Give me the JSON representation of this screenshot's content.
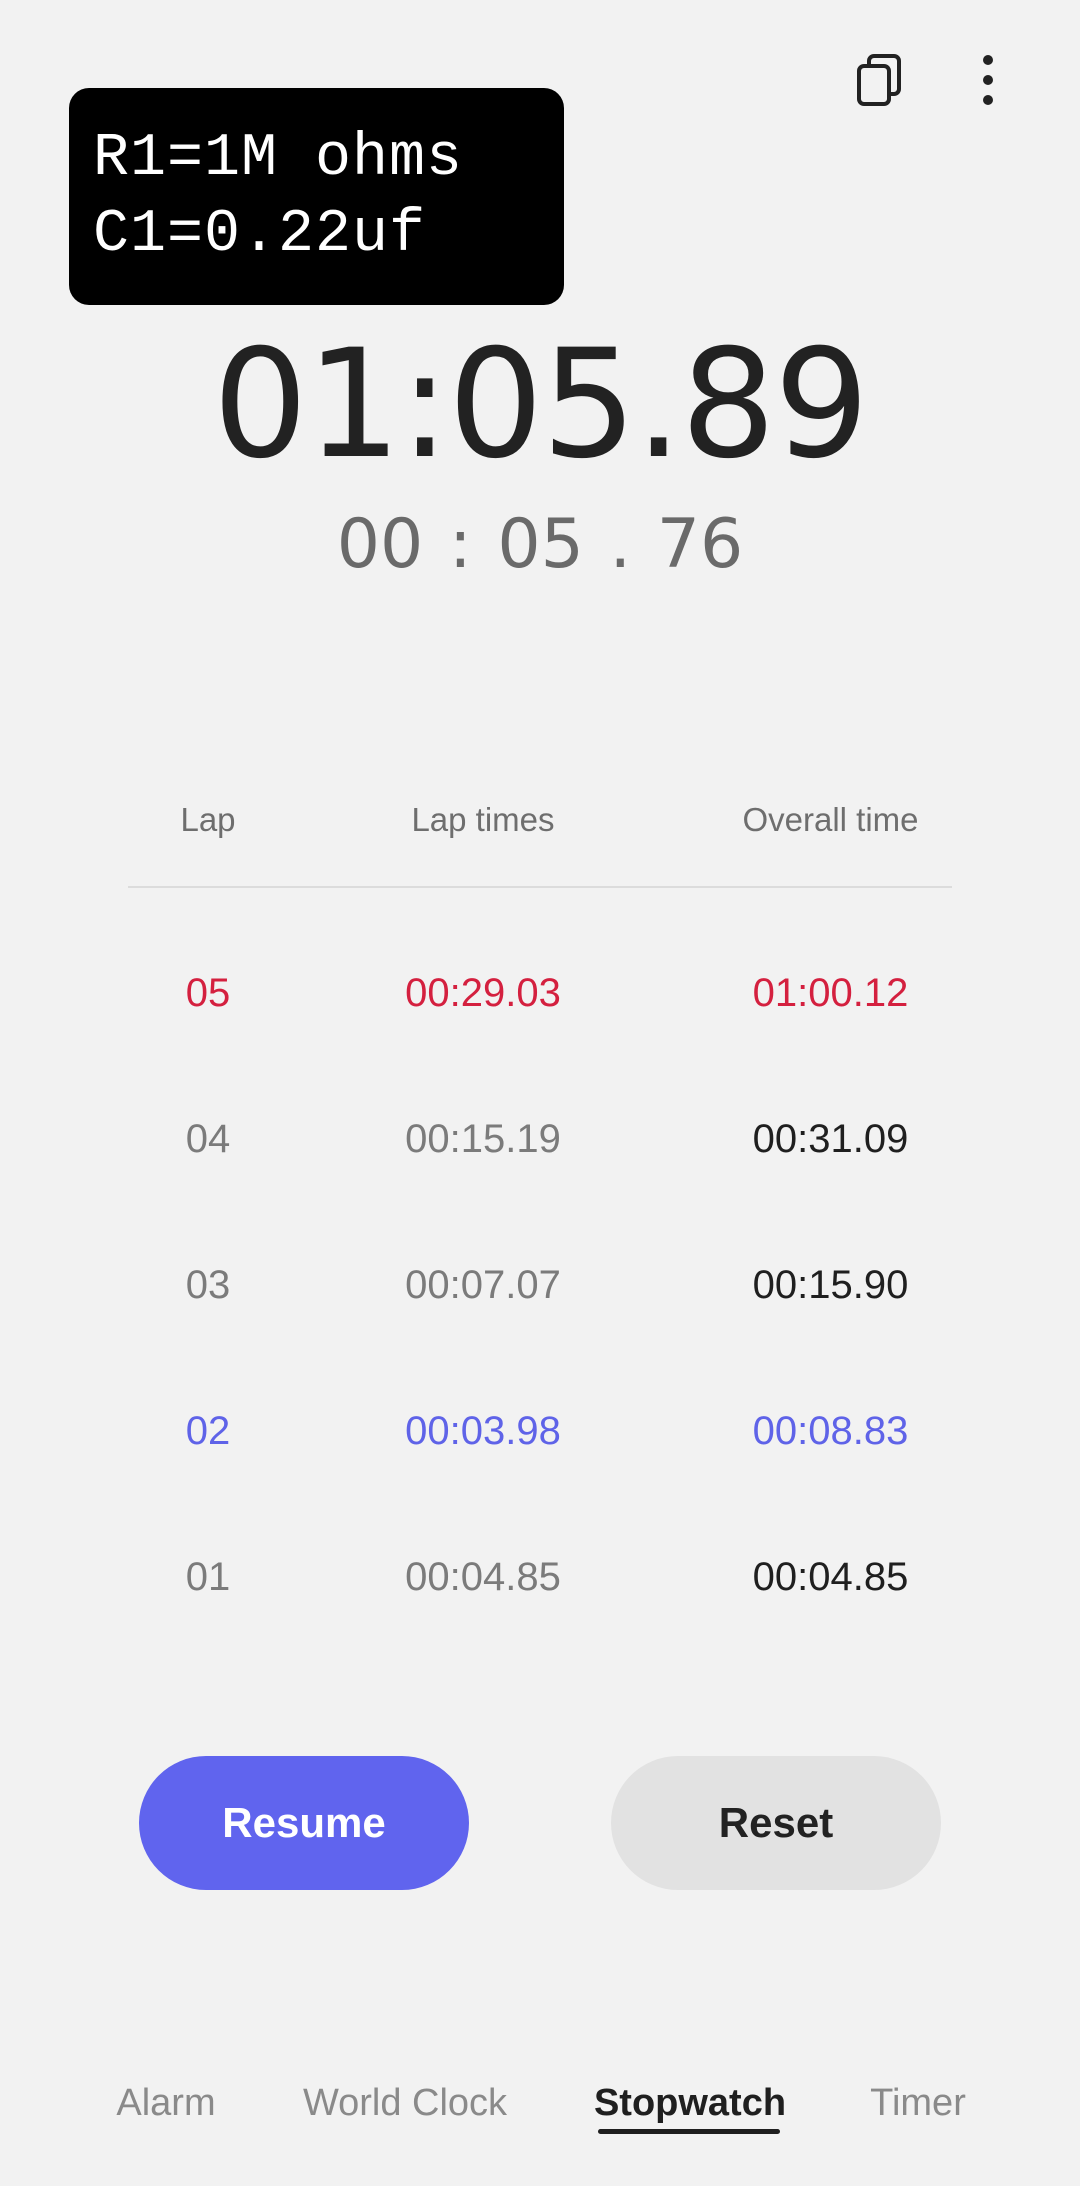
{
  "overlay": {
    "line1": "R1=1M ohms",
    "line2": "C1=0.22uf"
  },
  "stopwatch": {
    "main_time": "01:05.89",
    "current_lap_time": "00 : 05 . 76"
  },
  "lap_table": {
    "headers": {
      "lap": "Lap",
      "lap_times": "Lap times",
      "overall_time": "Overall time"
    },
    "rows": [
      {
        "lap": "05",
        "lap_time": "00:29.03",
        "overall": "01:00.12",
        "highlight": "slowest"
      },
      {
        "lap": "04",
        "lap_time": "00:15.19",
        "overall": "00:31.09",
        "highlight": "none"
      },
      {
        "lap": "03",
        "lap_time": "00:07.07",
        "overall": "00:15.90",
        "highlight": "none"
      },
      {
        "lap": "02",
        "lap_time": "00:03.98",
        "overall": "00:08.83",
        "highlight": "fastest"
      },
      {
        "lap": "01",
        "lap_time": "00:04.85",
        "overall": "00:04.85",
        "highlight": "none"
      }
    ]
  },
  "buttons": {
    "resume_label": "Resume",
    "reset_label": "Reset"
  },
  "nav": {
    "alarm": "Alarm",
    "world_clock": "World Clock",
    "stopwatch": "Stopwatch",
    "timer": "Timer",
    "active": "stopwatch"
  },
  "icons": {
    "popup": "popup-view-icon",
    "more": "more-options-icon"
  },
  "colors": {
    "accent": "#6064ee",
    "slowest": "#d4203f",
    "fastest": "#5f63e8",
    "background": "#f2f2f2"
  }
}
